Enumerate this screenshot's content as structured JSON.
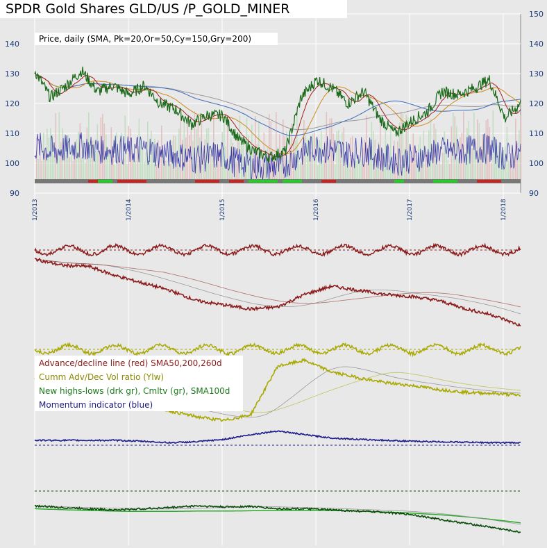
{
  "header": {
    "title": "SPDR Gold Shares GLD/US /P_GOLD_MINER",
    "price_label": "Price, daily (SMA, Pk=20,Or=50,Cy=150,Gry=200)"
  },
  "legend": {
    "items": [
      {
        "label": "Advance/decline line (red) SMA50,200,260d",
        "color": "#8b1a1a"
      },
      {
        "label": "Cumm Adv/Dec Vol ratio (Ylw)",
        "color": "#8a8a00"
      },
      {
        "label": "New highs-lows (drk gr), Cmltv (gr), SMA100d",
        "color": "#1a7a1a"
      },
      {
        "label": "Momentum indicator (blue)",
        "color": "#1a1a7a"
      }
    ]
  },
  "chart_data": [
    {
      "type": "line",
      "panel": "price",
      "y_ticks": [
        "150",
        "140",
        "130",
        "120",
        "110",
        "100",
        "90"
      ],
      "ylim": [
        90,
        150
      ],
      "x_ticks": [
        "1/2013",
        "1/2014",
        "1/2015",
        "1/2016",
        "1/2017",
        "1/2018"
      ],
      "grid": true,
      "series": [
        {
          "name": "Price",
          "x": [
            "2013-01",
            "2013-03",
            "2013-05",
            "2013-07",
            "2013-09",
            "2013-11",
            "2014-01",
            "2014-03",
            "2014-05",
            "2014-07",
            "2014-09",
            "2014-11",
            "2015-01",
            "2015-03",
            "2015-05",
            "2015-07",
            "2015-09",
            "2015-11",
            "2016-01",
            "2016-03",
            "2016-05",
            "2016-07",
            "2016-09",
            "2016-11",
            "2017-01",
            "2017-03",
            "2017-05",
            "2017-07",
            "2017-09",
            "2017-11",
            "2018-01",
            "2018-03"
          ],
          "values": [
            131,
            122,
            126,
            131,
            124,
            126,
            123,
            126,
            120,
            118,
            113,
            116,
            116,
            108,
            104,
            102,
            104,
            122,
            128,
            125,
            120,
            124,
            115,
            110,
            114,
            117,
            124,
            123,
            125,
            128,
            115,
            120
          ]
        }
      ]
    },
    {
      "type": "line",
      "panel": "indicators",
      "x_ticks": [
        "1/2013",
        "1/2014",
        "1/2015",
        "1/2016",
        "1/2017",
        "1/2018"
      ],
      "series": [
        {
          "name": "Advance/decline line (red) SMA50,200,260d",
          "values": [
            0.78,
            0.72,
            0.71,
            0.62,
            0.55,
            0.48,
            0.38,
            0.34,
            0.3,
            0.32,
            0.44,
            0.52,
            0.48,
            0.44,
            0.42,
            0.38,
            0.3,
            0.24,
            0.14
          ]
        },
        {
          "name": "Cumm Adv/Dec Vol ratio (Ylw)",
          "values": [
            0.6,
            0.58,
            0.52,
            0.42,
            0.34,
            0.26,
            0.2,
            0.16,
            0.22,
            0.72,
            0.78,
            0.66,
            0.6,
            0.55,
            0.52,
            0.48,
            0.45,
            0.44,
            0.42
          ]
        },
        {
          "name": "Momentum indicator (blue)",
          "values": [
            0.5,
            0.5,
            0.5,
            0.5,
            0.48,
            0.45,
            0.47,
            0.52,
            0.62,
            0.7,
            0.62,
            0.55,
            0.52,
            0.5,
            0.48,
            0.47,
            0.46,
            0.45,
            0.45
          ]
        },
        {
          "name": "New highs-lows (drk gr), Cmltv (gr), SMA100d",
          "values": [
            0.55,
            0.52,
            0.5,
            0.48,
            0.5,
            0.52,
            0.55,
            0.53,
            0.54,
            0.5,
            0.5,
            0.48,
            0.46,
            0.44,
            0.4,
            0.32,
            0.25,
            0.18,
            0.1
          ]
        }
      ]
    }
  ]
}
